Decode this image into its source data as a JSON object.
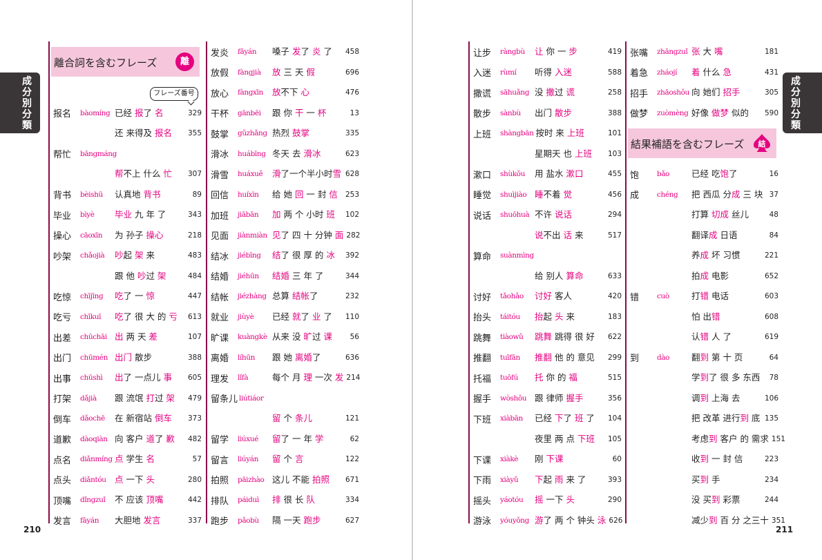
{
  "side_tab": "成分別分類",
  "page_left": "210",
  "page_right": "211",
  "colors": {
    "accent": "#e4007f",
    "header_bg": "#f6c7dc",
    "rule": "#8b0a4a",
    "tab": "#3a3637"
  },
  "headers": {
    "rihe": {
      "title": "離合詞を含むフレーズ",
      "badge": "離"
    },
    "jieguo": {
      "title": "結果補語を含むフレーズ",
      "badge": "結",
      "icon": "spade-icon"
    }
  },
  "phrase_number_label": "フレーズ番号",
  "columns": [
    [
      {
        "h": "报名",
        "p": "bàomíng",
        "ph": "已经 报了 名",
        "n": "329"
      },
      {
        "ph": "还 来得及 报名",
        "n": "355",
        "hl": "报名"
      },
      {
        "h": "帮忙",
        "p": "bāngmáng"
      },
      {
        "ph": "帮不上 什么 忙",
        "n": "307",
        "hl": "帮忙"
      },
      {
        "h": "背书",
        "p": "bèishū",
        "ph": "认真地 背书",
        "n": "89"
      },
      {
        "h": "毕业",
        "p": "bìyè",
        "ph": "毕业 九 年 了",
        "n": "343"
      },
      {
        "h": "操心",
        "p": "cāoxīn",
        "ph": "为 孙子 操心",
        "n": "218"
      },
      {
        "h": "吵架",
        "p": "chǎojià",
        "ph": "吵起 架 来",
        "n": "483"
      },
      {
        "ph": "跟 他 吵过 架",
        "n": "484",
        "hl": "吵架"
      },
      {
        "h": "吃惊",
        "p": "chījīng",
        "ph": "吃了 一 惊",
        "n": "447"
      },
      {
        "h": "吃亏",
        "p": "chīkuī",
        "ph": "吃了 很 大 的 亏",
        "n": "613"
      },
      {
        "h": "出差",
        "p": "chūchāi",
        "ph": "出 两 天 差",
        "n": "107"
      },
      {
        "h": "出门",
        "p": "chūmén",
        "ph": "出门 散步",
        "n": "388"
      },
      {
        "h": "出事",
        "p": "chūshì",
        "ph": "出了 一点儿 事",
        "n": "605"
      },
      {
        "h": "打架",
        "p": "dǎjià",
        "ph": "跟 流氓 打过 架",
        "n": "479"
      },
      {
        "h": "倒车",
        "p": "dǎochē",
        "ph": "在 新宿站 倒车",
        "n": "373"
      },
      {
        "h": "道歉",
        "p": "dàoqiàn",
        "ph": "向 客户 道了 歉",
        "n": "482"
      },
      {
        "h": "点名",
        "p": "diǎnmíng",
        "ph": "点 学生 名",
        "n": "57"
      },
      {
        "h": "点头",
        "p": "diǎntóu",
        "ph": "点 一下 头",
        "n": "280"
      },
      {
        "h": "顶嘴",
        "p": "dǐngzuǐ",
        "ph": "不 应该 顶嘴",
        "n": "442"
      },
      {
        "h": "发言",
        "p": "fāyán",
        "ph": "大胆地 发言",
        "n": "337"
      }
    ],
    [
      {
        "h": "发炎",
        "p": "fāyán",
        "ph": "嗓子 发了 炎 了",
        "n": "458"
      },
      {
        "h": "放假",
        "p": "fàngjià",
        "ph": "放 三 天 假",
        "n": "696"
      },
      {
        "h": "放心",
        "p": "fàngxīn",
        "ph": "放不下 心",
        "n": "476"
      },
      {
        "h": "干杯",
        "p": "gānbēi",
        "ph": "跟 你 干 一 杯",
        "n": "13"
      },
      {
        "h": "鼓掌",
        "p": "gǔzhǎng",
        "ph": "热烈 鼓掌",
        "n": "335"
      },
      {
        "h": "滑冰",
        "p": "huábīng",
        "ph": "冬天 去 滑冰",
        "n": "623"
      },
      {
        "h": "滑雪",
        "p": "huáxuě",
        "ph": "滑了一个半小时雪",
        "n": "628"
      },
      {
        "h": "回信",
        "p": "huíxìn",
        "ph": "给 她 回 一 封 信",
        "n": "253"
      },
      {
        "h": "加班",
        "p": "jiābān",
        "ph": "加 两 个 小时 班",
        "n": "102"
      },
      {
        "h": "见面",
        "p": "jiànmiàn",
        "ph": "见了 四 十 分钟 面",
        "n": "282"
      },
      {
        "h": "结冰",
        "p": "jiébīng",
        "ph": "结了 很 厚 的 冰",
        "n": "392"
      },
      {
        "h": "结婚",
        "p": "jiéhūn",
        "ph": "结婚 三 年 了",
        "n": "344"
      },
      {
        "h": "结帐",
        "p": "jiézhàng",
        "ph": "总算 结帐了",
        "n": "232"
      },
      {
        "h": "就业",
        "p": "jiùyè",
        "ph": "已经 就了 业 了",
        "n": "110"
      },
      {
        "h": "旷课",
        "p": "kuàngkè",
        "ph": "从来 没 旷过 课",
        "n": "56"
      },
      {
        "h": "离婚",
        "p": "líhūn",
        "ph": "跟 她 离婚了",
        "n": "636"
      },
      {
        "h": "理发",
        "p": "lǐfà",
        "ph": "每个 月 理 一次 发",
        "n": "214"
      },
      {
        "h": "留条儿",
        "p": "liútiáor"
      },
      {
        "ph": "留 个 条儿",
        "n": "121",
        "hl": "留条儿"
      },
      {
        "h": "留学",
        "p": "liúxué",
        "ph": "留了 一 年 学",
        "n": "62"
      },
      {
        "h": "留言",
        "p": "liúyán",
        "ph": "留 个 言",
        "n": "122"
      },
      {
        "h": "拍照",
        "p": "pāizhào",
        "ph": "这儿 不能 拍照",
        "n": "671"
      },
      {
        "h": "排队",
        "p": "páiduì",
        "ph": "排 很 长 队",
        "n": "334"
      },
      {
        "h": "跑步",
        "p": "pǎobù",
        "ph": "隔 一天 跑步",
        "n": "627"
      }
    ],
    [
      {
        "h": "让步",
        "p": "ràngbù",
        "ph": "让 你 一 步",
        "n": "419"
      },
      {
        "h": "入迷",
        "p": "rùmí",
        "ph": "听得 入迷",
        "n": "588"
      },
      {
        "h": "撒谎",
        "p": "sāhuǎng",
        "ph": "没 撒过 谎",
        "n": "258"
      },
      {
        "h": "散步",
        "p": "sànbù",
        "ph": "出门 散步",
        "n": "388"
      },
      {
        "h": "上班",
        "p": "shàngbān",
        "ph": "按时 来 上班",
        "n": "101"
      },
      {
        "ph": "星期天 也 上班",
        "n": "103",
        "hl": "上班"
      },
      {
        "h": "漱口",
        "p": "shùkǒu",
        "ph": "用 盐水 漱口",
        "n": "455"
      },
      {
        "h": "睡觉",
        "p": "shuìjiào",
        "ph": "睡不着 觉",
        "n": "456"
      },
      {
        "h": "说话",
        "p": "shuōhuà",
        "ph": "不许 说话",
        "n": "294"
      },
      {
        "ph": "说不出 话 来",
        "n": "517",
        "hl": "说话"
      },
      {
        "h": "算命",
        "p": "suànmìng"
      },
      {
        "ph": "给 别人 算命",
        "n": "633",
        "hl": "算命"
      },
      {
        "h": "讨好",
        "p": "tǎohǎo",
        "ph": "讨好 客人",
        "n": "420"
      },
      {
        "h": "抬头",
        "p": "táitóu",
        "ph": "抬起 头 来",
        "n": "183"
      },
      {
        "h": "跳舞",
        "p": "tiàowǔ",
        "ph": "跳舞 跳得 很 好",
        "n": "622"
      },
      {
        "h": "推翻",
        "p": "tuīfān",
        "ph": "推翻 他 的 意见",
        "n": "299"
      },
      {
        "h": "托福",
        "p": "tuōfú",
        "ph": "托 你 的 福",
        "n": "515"
      },
      {
        "h": "握手",
        "p": "wòshǒu",
        "ph": "跟 律师 握手",
        "n": "356"
      },
      {
        "h": "下班",
        "p": "xiàbān",
        "ph": "已经 下了 班 了",
        "n": "104"
      },
      {
        "ph": "夜里 两 点 下班",
        "n": "105",
        "hl": "下班"
      },
      {
        "h": "下课",
        "p": "xiàkè",
        "ph": "刚 下课",
        "n": "60"
      },
      {
        "h": "下雨",
        "p": "xiàyǔ",
        "ph": "下起 雨 来 了",
        "n": "393"
      },
      {
        "h": "摇头",
        "p": "yáotóu",
        "ph": "摇 一下 头",
        "n": "290"
      },
      {
        "h": "游泳",
        "p": "yóuyǒng",
        "ph": "游了 两 个 钟头 泳",
        "n": "626"
      }
    ],
    [
      {
        "h": "张嘴",
        "p": "zhāngzuǐ",
        "ph": "张 大 嘴",
        "n": "181"
      },
      {
        "h": "着急",
        "p": "zháojí",
        "ph": "着 什么 急",
        "n": "431"
      },
      {
        "h": "招手",
        "p": "zhāoshǒu",
        "ph": "向 她们 招手",
        "n": "305"
      },
      {
        "h": "做梦",
        "p": "zuòmèng",
        "ph": "好像 做梦 似的",
        "n": "590"
      },
      {
        "header": "jieguo"
      },
      {
        "h": "饱",
        "p": "bǎo",
        "ph": "已经 吃饱了",
        "n": "16"
      },
      {
        "h": "成",
        "p": "chéng",
        "ph": "把 西瓜 分成 三 块",
        "n": "37"
      },
      {
        "ph": "打算 切成 丝儿",
        "n": "48",
        "hl": "切成"
      },
      {
        "ph": "翻译成 日语",
        "n": "84",
        "hl": "成"
      },
      {
        "ph": "养成 坏 习惯",
        "n": "221",
        "hl": "成"
      },
      {
        "ph": "拍成 电影",
        "n": "652",
        "hl": "成"
      },
      {
        "h": "错",
        "p": "cuò",
        "ph": "打错 电话",
        "n": "603"
      },
      {
        "ph": "怕 出错",
        "n": "608",
        "hl": "错"
      },
      {
        "ph": "认错 人 了",
        "n": "619",
        "hl": "错"
      },
      {
        "h": "到",
        "p": "dào",
        "ph": "翻到 第 十 页",
        "n": "64"
      },
      {
        "ph": "学到了 很 多 东西",
        "n": "78",
        "hl": "到"
      },
      {
        "ph": "调到 上海 去",
        "n": "106",
        "hl": "到"
      },
      {
        "ph": "把 改革 进行到 底",
        "n": "135",
        "hl": "到"
      },
      {
        "ph": "考虑到 客户 的 需求",
        "n": "151",
        "hl": "到"
      },
      {
        "ph": "收到 一 封 信",
        "n": "223",
        "hl": "到"
      },
      {
        "ph": "买到 手",
        "n": "234",
        "hl": "到"
      },
      {
        "ph": "没 买到 彩票",
        "n": "244",
        "hl": "到"
      },
      {
        "ph": "减少到 百 分 之三十",
        "n": "351",
        "hl": "到"
      }
    ]
  ]
}
